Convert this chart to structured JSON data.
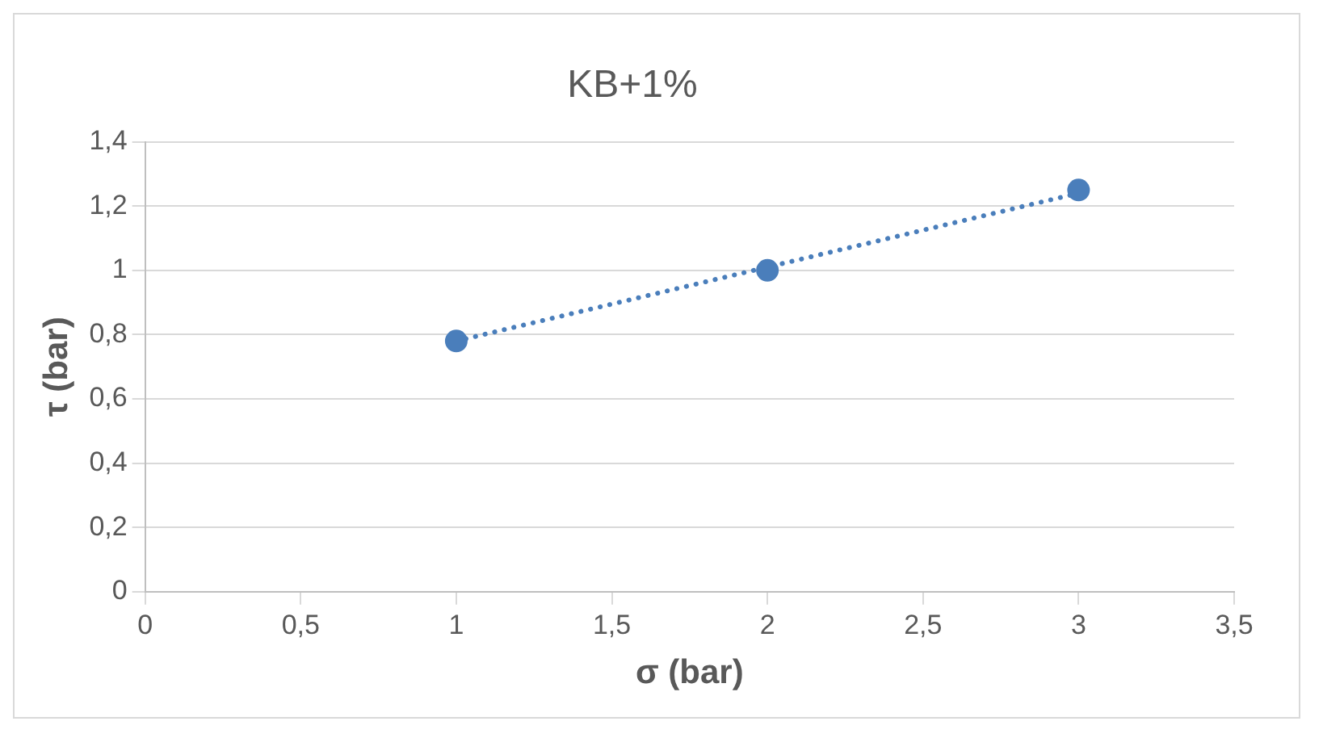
{
  "chart_data": {
    "type": "scatter",
    "title": "KB+1%",
    "xlabel": "σ (bar)",
    "ylabel": "τ (bar)",
    "xlim": [
      0,
      3.5
    ],
    "xticks": [
      0,
      {
        "value": 0.5,
        "label": "0,5"
      },
      1,
      {
        "value": 1.5,
        "label": "1,5"
      },
      2,
      {
        "value": 2.5,
        "label": "2,5"
      },
      3,
      {
        "value": 3.5,
        "label": "3,5"
      }
    ],
    "ylim": [
      0,
      1.4
    ],
    "yticks": [
      0,
      {
        "value": 0.2,
        "label": "0,2"
      },
      {
        "value": 0.4,
        "label": "0,4"
      },
      {
        "value": 0.6,
        "label": "0,6"
      },
      {
        "value": 0.8,
        "label": "0,8"
      },
      1,
      {
        "value": 1.2,
        "label": "1,2"
      },
      {
        "value": 1.4,
        "label": "1,4"
      }
    ],
    "grid": "y",
    "legend": false,
    "series": [
      {
        "color": "#4a7ebb",
        "x": [
          1,
          2,
          3
        ],
        "values": [
          0.78,
          1.0,
          1.25
        ],
        "marker": "circle"
      },
      {
        "type": "line",
        "color": "#4a7ebb",
        "x": [
          1,
          3
        ],
        "values": [
          0.78,
          1.24
        ],
        "marker": "none",
        "line_style": "dotted"
      }
    ]
  }
}
